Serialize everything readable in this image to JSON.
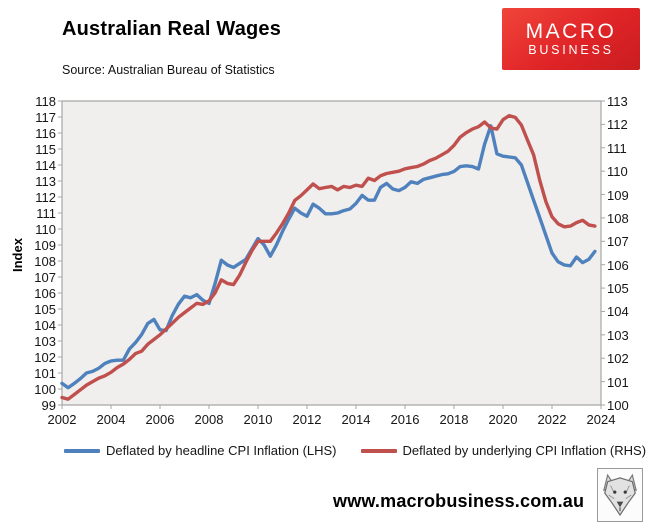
{
  "header": {
    "title": "Australian Real Wages",
    "source": "Source: Australian Bureau of Statistics"
  },
  "logo": {
    "line1": "MACRO",
    "line2": "BUSINESS",
    "bg_color": "#e02427"
  },
  "footer": {
    "website": "www.macrobusiness.com.au",
    "wolf_icon": "wolf-logo"
  },
  "chart_data": {
    "type": "line",
    "title": "Australian Real Wages",
    "ylabel_left": "Index",
    "grid": false,
    "plot_background": "#f0efee",
    "axis_color": "#a6a6a6",
    "legend_position": "bottom",
    "axes": {
      "x": {
        "min": 2002,
        "max": 2024,
        "ticks": [
          2002,
          2004,
          2006,
          2008,
          2010,
          2012,
          2014,
          2016,
          2018,
          2020,
          2022,
          2024
        ]
      },
      "left": {
        "min": 99,
        "max": 118,
        "ticks": [
          99,
          100,
          101,
          102,
          103,
          104,
          105,
          106,
          107,
          108,
          109,
          110,
          111,
          112,
          113,
          114,
          115,
          116,
          117,
          118
        ]
      },
      "right": {
        "min": 100,
        "max": 113,
        "ticks": [
          100,
          101,
          102,
          103,
          104,
          105,
          106,
          107,
          108,
          109,
          110,
          111,
          112,
          113
        ]
      }
    },
    "x": [
      2002,
      2002.25,
      2002.5,
      2002.75,
      2003,
      2003.25,
      2003.5,
      2003.75,
      2004,
      2004.25,
      2004.5,
      2004.75,
      2005,
      2005.25,
      2005.5,
      2005.75,
      2006,
      2006.25,
      2006.5,
      2006.75,
      2007,
      2007.25,
      2007.5,
      2007.75,
      2008,
      2008.25,
      2008.5,
      2008.75,
      2009,
      2009.25,
      2009.5,
      2009.75,
      2010,
      2010.25,
      2010.5,
      2010.75,
      2011,
      2011.25,
      2011.5,
      2011.75,
      2012,
      2012.25,
      2012.5,
      2012.75,
      2013,
      2013.25,
      2013.5,
      2013.75,
      2014,
      2014.25,
      2014.5,
      2014.75,
      2015,
      2015.25,
      2015.5,
      2015.75,
      2016,
      2016.25,
      2016.5,
      2016.75,
      2017,
      2017.25,
      2017.5,
      2017.75,
      2018,
      2018.25,
      2018.5,
      2018.75,
      2019,
      2019.25,
      2019.5,
      2019.75,
      2020,
      2020.25,
      2020.5,
      2020.75,
      2021,
      2021.25,
      2021.5,
      2021.75,
      2022,
      2022.25,
      2022.5,
      2022.75,
      2023,
      2023.25,
      2023.5,
      2023.75
    ],
    "series": [
      {
        "name": "Deflated by headline CPI Inflation (LHS)",
        "axis": "left",
        "color": "#4F81BD",
        "values": [
          100.35,
          100.08,
          100.35,
          100.65,
          101.0,
          101.1,
          101.3,
          101.6,
          101.75,
          101.8,
          101.8,
          102.5,
          102.9,
          103.4,
          104.1,
          104.35,
          103.7,
          103.65,
          104.6,
          105.3,
          105.8,
          105.7,
          105.9,
          105.55,
          105.35,
          106.6,
          108.05,
          107.75,
          107.6,
          107.85,
          108.1,
          108.75,
          109.4,
          109.0,
          108.3,
          109.0,
          109.85,
          110.6,
          111.3,
          111.0,
          110.8,
          111.55,
          111.3,
          110.95,
          110.95,
          111.0,
          111.15,
          111.25,
          111.6,
          112.1,
          111.8,
          111.8,
          112.6,
          112.85,
          112.5,
          112.4,
          112.6,
          112.95,
          112.85,
          113.1,
          113.2,
          113.3,
          113.4,
          113.45,
          113.6,
          113.9,
          113.95,
          113.9,
          113.75,
          115.3,
          116.45,
          114.7,
          114.55,
          114.5,
          114.45,
          114.0,
          112.9,
          111.8,
          110.7,
          109.6,
          108.5,
          107.95,
          107.75,
          107.7,
          108.25,
          107.9,
          108.1,
          108.6
        ]
      },
      {
        "name": "Deflated by underlying CPI Inflation (RHS)",
        "axis": "right",
        "color": "#C0504D",
        "values": [
          100.32,
          100.25,
          100.45,
          100.65,
          100.85,
          101.0,
          101.15,
          101.25,
          101.4,
          101.6,
          101.75,
          101.95,
          102.2,
          102.3,
          102.6,
          102.8,
          103.0,
          103.25,
          103.5,
          103.75,
          103.95,
          104.15,
          104.35,
          104.3,
          104.45,
          104.8,
          105.35,
          105.2,
          105.15,
          105.55,
          106.1,
          106.6,
          107.0,
          107.0,
          107.0,
          107.35,
          107.75,
          108.2,
          108.75,
          108.95,
          109.2,
          109.45,
          109.25,
          109.3,
          109.35,
          109.2,
          109.35,
          109.3,
          109.4,
          109.35,
          109.7,
          109.6,
          109.8,
          109.9,
          109.95,
          110.0,
          110.1,
          110.15,
          110.2,
          110.3,
          110.45,
          110.55,
          110.7,
          110.85,
          111.1,
          111.45,
          111.65,
          111.8,
          111.9,
          112.1,
          111.85,
          111.8,
          112.2,
          112.37,
          112.3,
          111.97,
          111.33,
          110.7,
          109.6,
          108.7,
          108.05,
          107.75,
          107.62,
          107.65,
          107.8,
          107.9,
          107.7,
          107.65
        ]
      }
    ]
  }
}
